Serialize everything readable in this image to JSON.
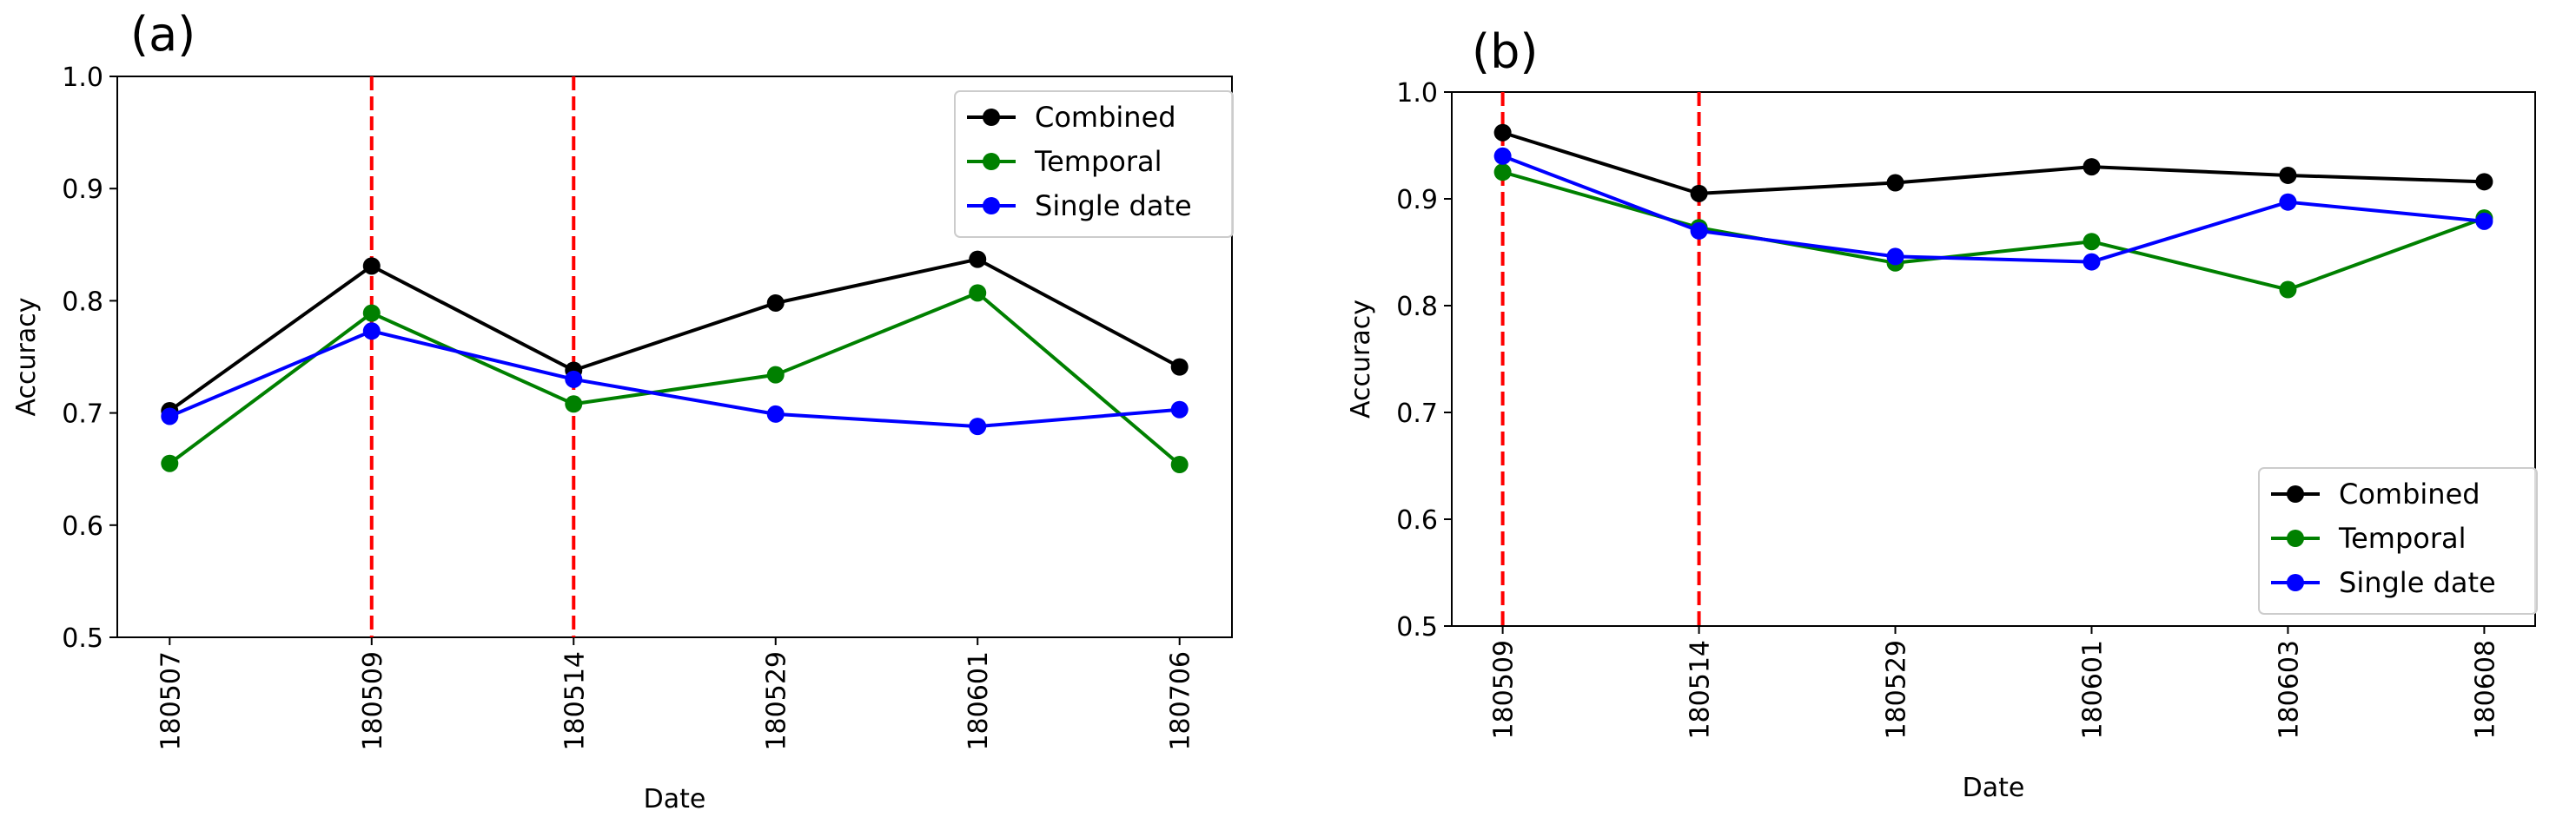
{
  "chart_data": [
    {
      "panel_label": "(a)",
      "type": "line",
      "categories": [
        "180507",
        "180509",
        "180514",
        "180529",
        "180601",
        "180706"
      ],
      "series": [
        {
          "name": "Combined",
          "color": "#000000",
          "values": [
            0.702,
            0.831,
            0.738,
            0.798,
            0.837,
            0.741
          ]
        },
        {
          "name": "Temporal",
          "color": "#008000",
          "values": [
            0.655,
            0.789,
            0.708,
            0.734,
            0.807,
            0.654
          ]
        },
        {
          "name": "Single date",
          "color": "#0000ff",
          "values": [
            0.697,
            0.773,
            0.73,
            0.699,
            0.688,
            0.703
          ]
        }
      ],
      "vertical_lines": [
        "180509",
        "180514"
      ],
      "vline_color": "#ff0000",
      "xlabel": "Date",
      "ylabel": "Accuracy",
      "ylim": [
        0.5,
        1.0
      ],
      "yticks": [
        "0.5",
        "0.6",
        "0.7",
        "0.8",
        "0.9",
        "1.0"
      ],
      "grid": false,
      "legend_position": "upper-right"
    },
    {
      "panel_label": "(b)",
      "type": "line",
      "categories": [
        "180509",
        "180514",
        "180529",
        "180601",
        "180603",
        "180608"
      ],
      "series": [
        {
          "name": "Combined",
          "color": "#000000",
          "values": [
            0.962,
            0.905,
            0.915,
            0.93,
            0.922,
            0.916
          ]
        },
        {
          "name": "Temporal",
          "color": "#008000",
          "values": [
            0.925,
            0.873,
            0.84,
            0.86,
            0.815,
            0.882
          ]
        },
        {
          "name": "Single date",
          "color": "#0000ff",
          "values": [
            0.94,
            0.87,
            0.846,
            0.841,
            0.897,
            0.879
          ]
        }
      ],
      "vertical_lines": [
        "180509",
        "180514"
      ],
      "vline_color": "#ff0000",
      "xlabel": "Date",
      "ylabel": "Accuracy",
      "ylim": [
        0.5,
        1.0
      ],
      "yticks": [
        "0.5",
        "0.6",
        "0.7",
        "0.8",
        "0.9",
        "1.0"
      ],
      "grid": false,
      "legend_position": "lower-right"
    }
  ]
}
